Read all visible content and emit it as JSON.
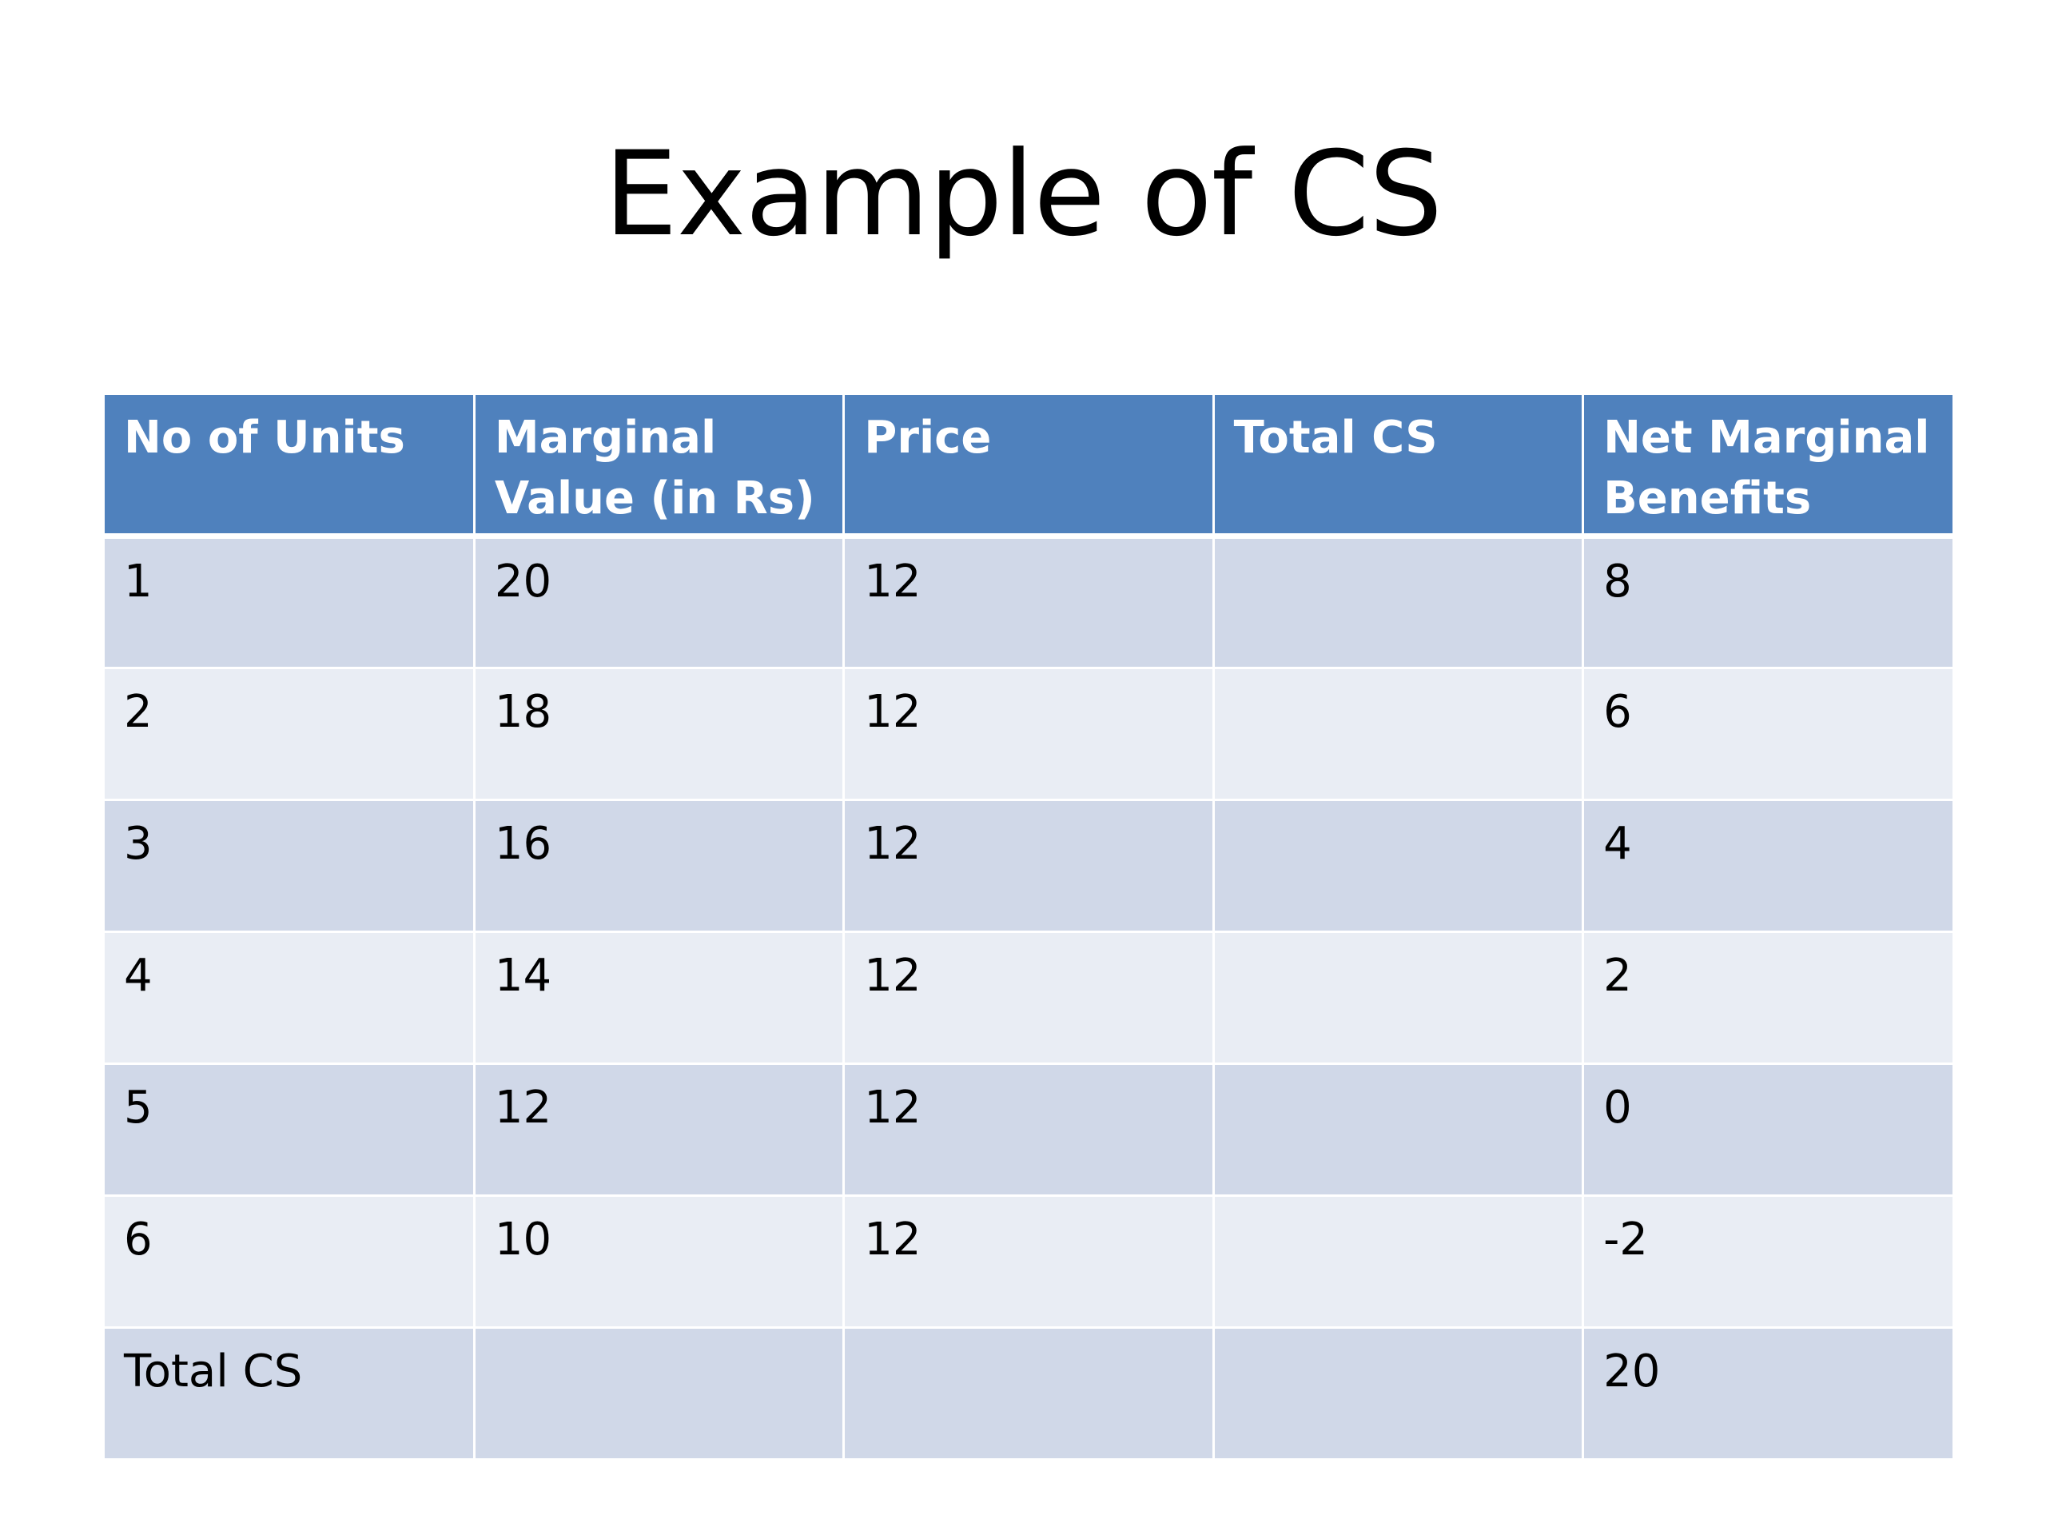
{
  "slide": {
    "title": "Example of CS"
  },
  "table": {
    "headers": [
      "No of Units",
      "Marginal Value (in Rs)",
      "Price",
      "Total CS",
      "Net Marginal Benefits"
    ],
    "rows": [
      [
        "1",
        "20",
        "12",
        "",
        "8"
      ],
      [
        "2",
        "18",
        "12",
        "",
        "6"
      ],
      [
        "3",
        "16",
        "12",
        "",
        "4"
      ],
      [
        "4",
        "14",
        "12",
        "",
        "2"
      ],
      [
        "5",
        "12",
        "12",
        "",
        "0"
      ],
      [
        "6",
        "10",
        "12",
        "",
        "-2"
      ],
      [
        "Total CS",
        "",
        "",
        "",
        "20"
      ]
    ]
  },
  "colors": {
    "header_bg": "#4f81bd",
    "row_dark": "#d0d8e8",
    "row_light": "#e9edf4"
  }
}
